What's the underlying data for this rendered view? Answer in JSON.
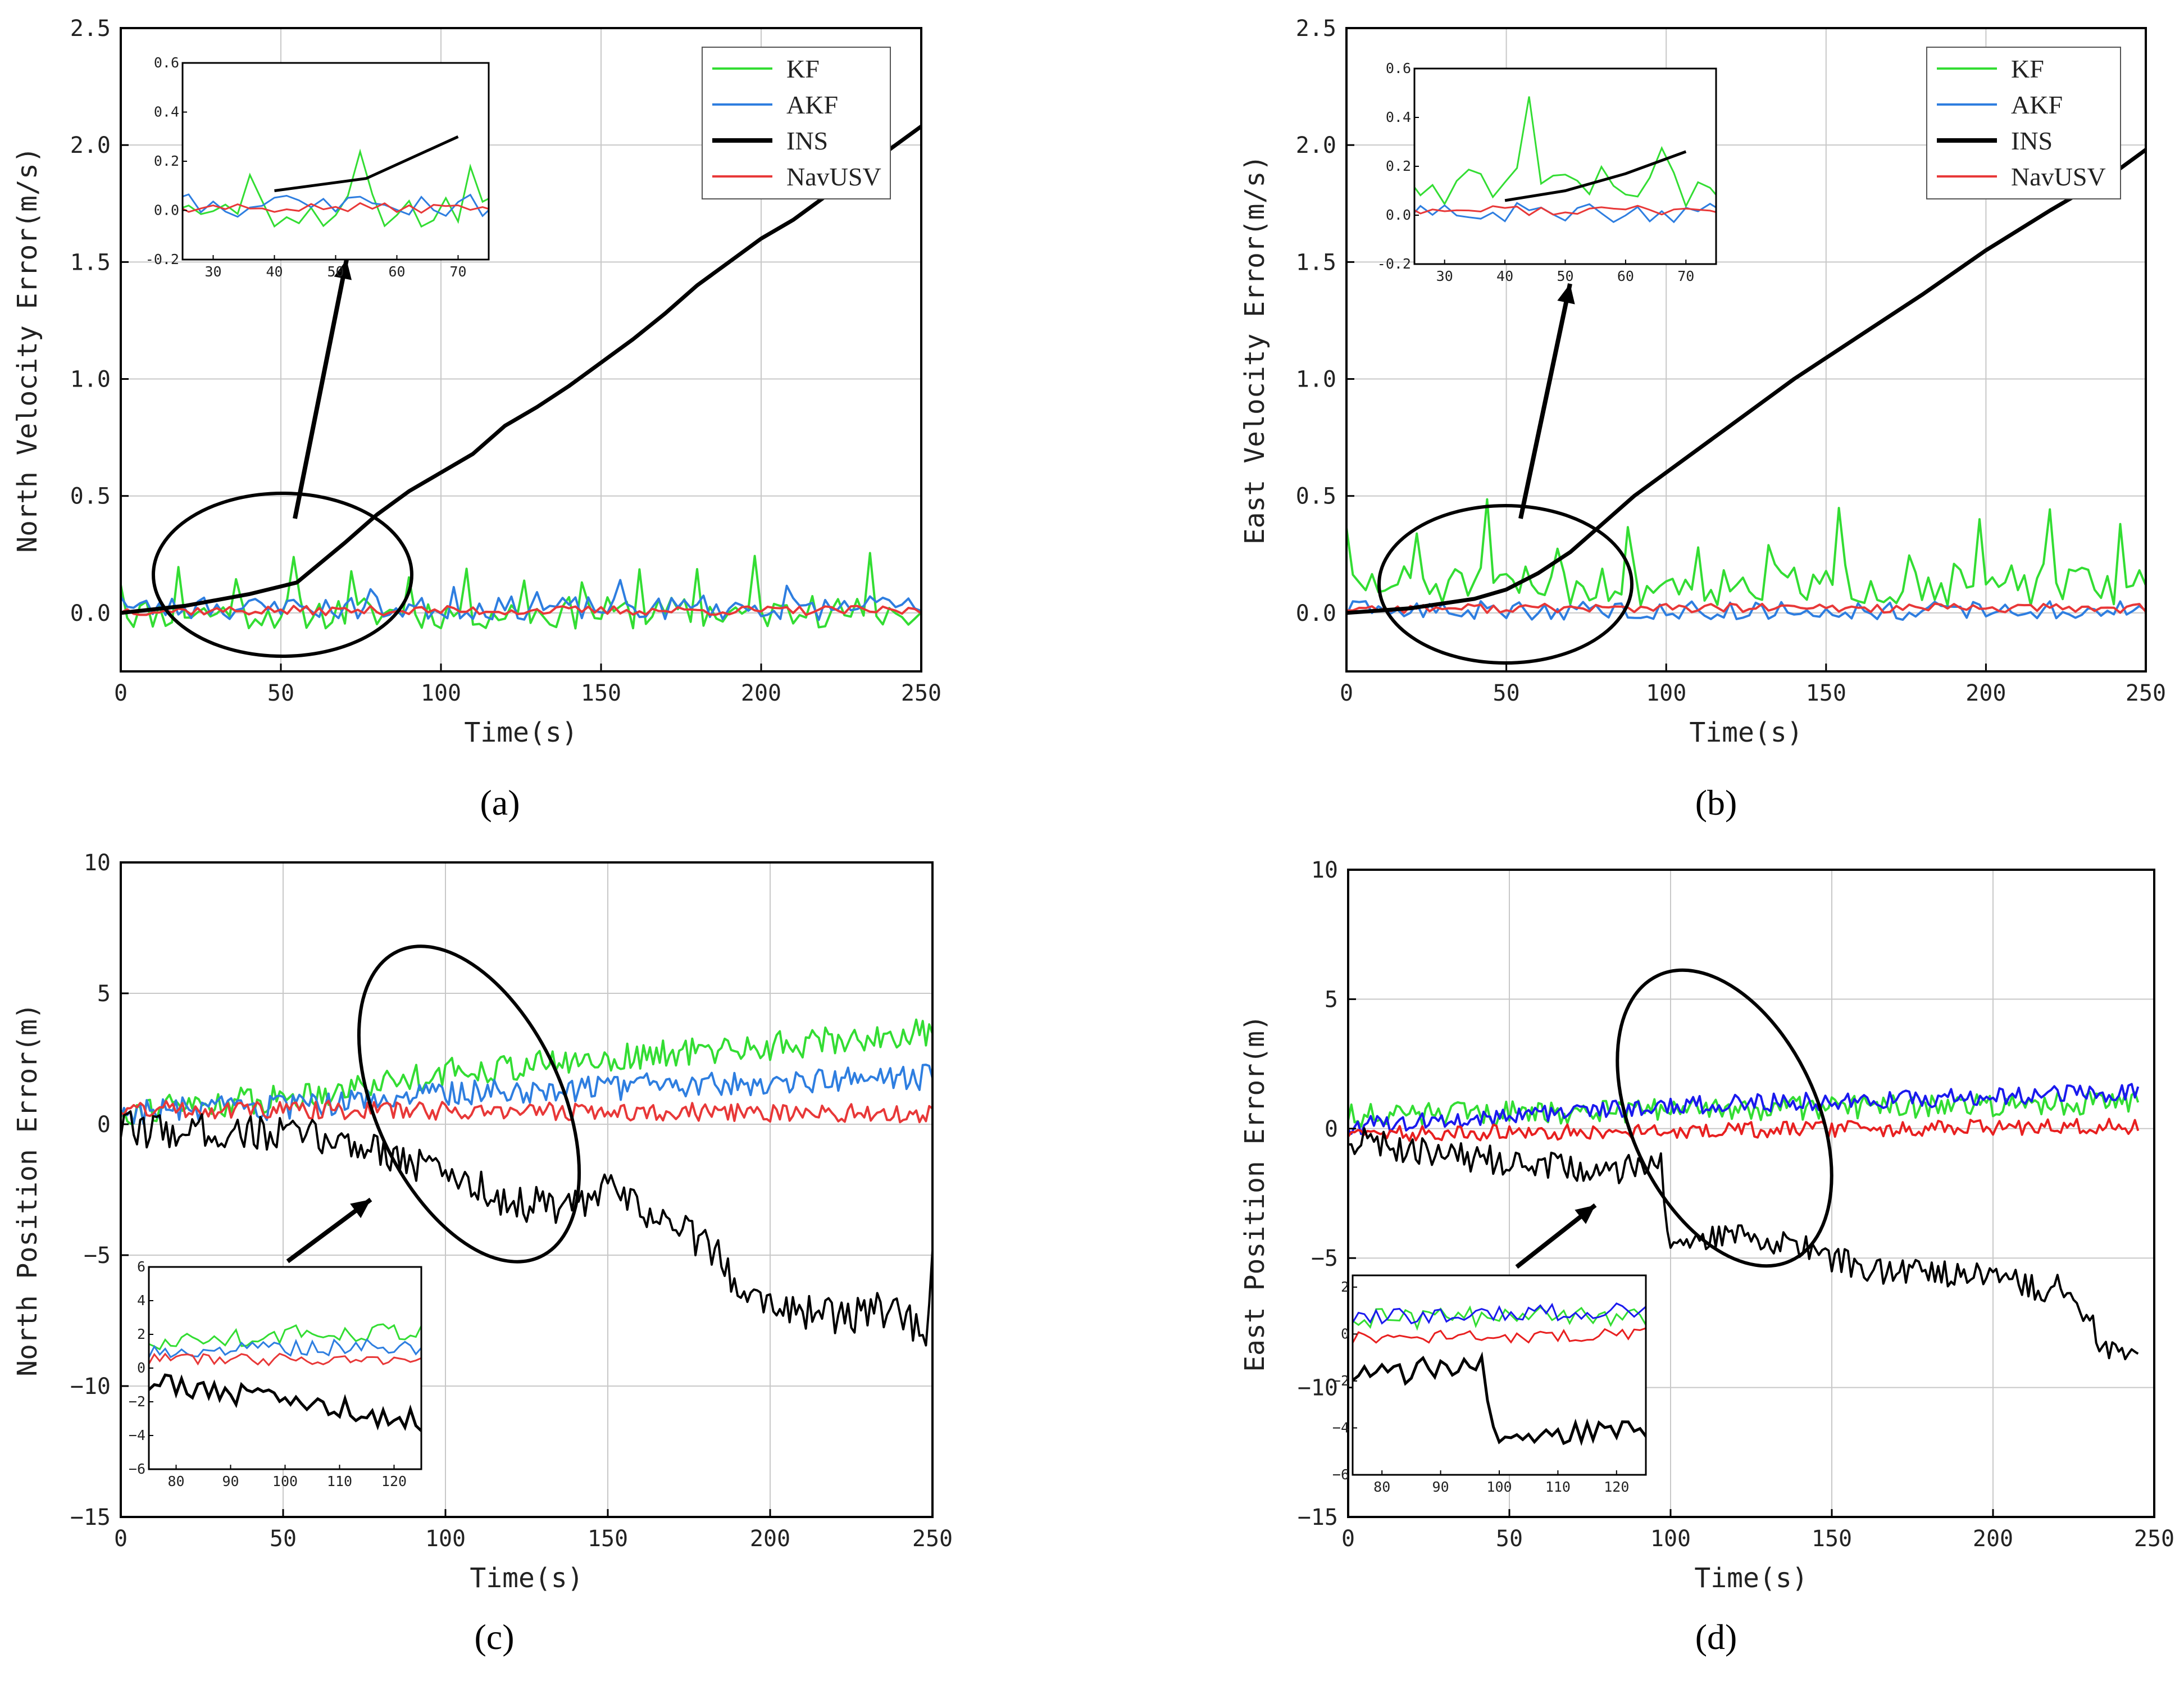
{
  "chart_data": [
    {
      "id": "a",
      "type": "line",
      "caption": "(a)",
      "xlabel": "Time(s)",
      "ylabel": "North Velocity Error(m/s)",
      "xlim": [
        0,
        250
      ],
      "ylim": [
        -0.25,
        2.5
      ],
      "xticks": [
        0,
        50,
        100,
        150,
        200,
        250
      ],
      "yticks": [
        0.0,
        0.5,
        1.0,
        1.5,
        2.0,
        2.5
      ],
      "ytick_labels": [
        "0.0",
        "0.5",
        "1.0",
        "1.5",
        "2.0",
        "2.5"
      ],
      "grid": true,
      "legend": {
        "placement": "top-right",
        "entries": [
          "KF",
          "AKF",
          "INS",
          "NavUSV"
        ]
      },
      "series": [
        {
          "name": "KF",
          "color": "#33dd33",
          "x_range": [
            0,
            250
          ],
          "step": 2,
          "base": 0.0,
          "noise": 0.07,
          "spike_every": 9,
          "spike": 0.22,
          "seed": 11
        },
        {
          "name": "AKF",
          "color": "#2e7ee0",
          "x_range": [
            0,
            250
          ],
          "step": 2,
          "base": 0.02,
          "noise": 0.05,
          "spike_every": 13,
          "spike": 0.1,
          "seed": 23
        },
        {
          "name": "INS",
          "color": "#000000",
          "width": 2.2,
          "x": [
            0,
            20,
            40,
            55,
            70,
            80,
            90,
            100,
            110,
            120,
            130,
            140,
            150,
            160,
            170,
            180,
            190,
            200,
            210,
            220,
            230,
            240,
            250
          ],
          "y": [
            0.0,
            0.03,
            0.08,
            0.13,
            0.3,
            0.42,
            0.52,
            0.6,
            0.68,
            0.8,
            0.88,
            0.97,
            1.07,
            1.17,
            1.28,
            1.4,
            1.5,
            1.6,
            1.68,
            1.78,
            1.87,
            1.98,
            2.08
          ]
        },
        {
          "name": "NavUSV",
          "color": "#e83838",
          "x_range": [
            0,
            250
          ],
          "step": 2,
          "base": 0.01,
          "noise": 0.02,
          "seed": 37
        }
      ],
      "inset": {
        "xlim": [
          25,
          75
        ],
        "ylim": [
          -0.2,
          0.6
        ],
        "xticks": [
          30,
          40,
          50,
          60,
          70
        ],
        "yticks": [
          -0.2,
          0.0,
          0.2,
          0.4,
          0.6
        ],
        "ytick_labels": [
          "-0.2",
          "0.0",
          "0.2",
          "0.4",
          "0.6"
        ]
      }
    },
    {
      "id": "b",
      "type": "line",
      "caption": "(b)",
      "xlabel": "Time(s)",
      "ylabel": "East Velocity Error(m/s)",
      "xlim": [
        0,
        250
      ],
      "ylim": [
        -0.25,
        2.5
      ],
      "xticks": [
        0,
        50,
        100,
        150,
        200,
        250
      ],
      "yticks": [
        0.0,
        0.5,
        1.0,
        1.5,
        2.0,
        2.5
      ],
      "ytick_labels": [
        "0.0",
        "0.5",
        "1.0",
        "1.5",
        "2.0",
        "2.5"
      ],
      "grid": true,
      "legend": {
        "placement": "top-right",
        "entries": [
          "KF",
          "AKF",
          "INS",
          "NavUSV"
        ]
      },
      "series": [
        {
          "name": "KF",
          "color": "#33dd33",
          "x_range": [
            0,
            250
          ],
          "step": 2,
          "base": 0.12,
          "noise": 0.09,
          "spike_every": 11,
          "spike": 0.3,
          "seed": 51
        },
        {
          "name": "AKF",
          "color": "#2e7ee0",
          "x_range": [
            0,
            250
          ],
          "step": 2,
          "base": 0.01,
          "noise": 0.04,
          "seed": 63
        },
        {
          "name": "INS",
          "color": "#000000",
          "width": 2.2,
          "x": [
            0,
            20,
            40,
            50,
            60,
            70,
            80,
            90,
            100,
            120,
            140,
            160,
            180,
            200,
            220,
            240,
            250
          ],
          "y": [
            0.0,
            0.02,
            0.06,
            0.1,
            0.17,
            0.26,
            0.38,
            0.5,
            0.6,
            0.8,
            1.0,
            1.18,
            1.36,
            1.55,
            1.72,
            1.88,
            1.98
          ]
        },
        {
          "name": "NavUSV",
          "color": "#e83838",
          "x_range": [
            0,
            250
          ],
          "step": 2,
          "base": 0.02,
          "noise": 0.02,
          "seed": 77
        }
      ],
      "inset": {
        "xlim": [
          25,
          75
        ],
        "ylim": [
          -0.2,
          0.6
        ],
        "xticks": [
          30,
          40,
          50,
          60,
          70
        ],
        "yticks": [
          -0.2,
          0.0,
          0.2,
          0.4,
          0.6
        ],
        "ytick_labels": [
          "-0.2",
          "0.0",
          "0.2",
          "0.4",
          "0.6"
        ]
      }
    },
    {
      "id": "c",
      "type": "line",
      "caption": "(c)",
      "xlabel": "Time(s)",
      "ylabel": "North Position Error(m)",
      "xlim": [
        0,
        250
      ],
      "ylim": [
        -15,
        10
      ],
      "xticks": [
        0,
        50,
        100,
        150,
        200,
        250
      ],
      "yticks": [
        -15,
        -10,
        -5,
        0,
        5,
        10
      ],
      "ytick_labels": [
        "−15",
        "−10",
        "−5",
        "0",
        "5",
        "10"
      ],
      "grid": true,
      "legend": null,
      "series": [
        {
          "name": "KF",
          "color": "#33dd33",
          "x": [
            0,
            50,
            100,
            150,
            200,
            250
          ],
          "y": [
            0.5,
            1.0,
            2.0,
            2.5,
            3.0,
            3.5
          ],
          "step": 1,
          "noise": 0.55,
          "seed": 91
        },
        {
          "name": "AKF",
          "color": "#2e7ee0",
          "x": [
            0,
            50,
            100,
            150,
            200,
            250
          ],
          "y": [
            0.5,
            0.6,
            1.2,
            1.4,
            1.6,
            1.8
          ],
          "step": 1,
          "noise": 0.5,
          "seed": 103
        },
        {
          "name": "INS",
          "color": "#000000",
          "x": [
            0,
            40,
            60,
            80,
            90,
            100,
            120,
            140,
            150,
            160,
            180,
            190,
            200,
            220,
            240,
            248,
            250
          ],
          "y": [
            -0.2,
            -0.3,
            -0.5,
            -0.9,
            -1.5,
            -1.8,
            -3.0,
            -3.2,
            -2.5,
            -3.2,
            -4.5,
            -6.0,
            -6.8,
            -7.4,
            -7.0,
            -8.5,
            -5.0
          ],
          "step": 1,
          "noise": 0.7,
          "seed": 117
        },
        {
          "name": "NavUSV",
          "color": "#e83838",
          "x": [
            0,
            250
          ],
          "y": [
            0.6,
            0.4
          ],
          "step": 1,
          "noise": 0.35,
          "seed": 131
        }
      ],
      "inset": {
        "xlim": [
          75,
          125
        ],
        "ylim": [
          -6,
          6
        ],
        "xticks": [
          80,
          90,
          100,
          110,
          120
        ],
        "yticks": [
          -6,
          -4,
          -2,
          0,
          2,
          4,
          6
        ],
        "ytick_labels": [
          "−6",
          "−4",
          "−2",
          "0",
          "2",
          "4",
          "6"
        ]
      }
    },
    {
      "id": "d",
      "type": "line",
      "caption": "(d)",
      "xlabel": "Time(s)",
      "ylabel": "East Position Error(m)",
      "xlim": [
        0,
        250
      ],
      "ylim": [
        -15,
        10
      ],
      "xticks": [
        0,
        50,
        100,
        150,
        200,
        250
      ],
      "yticks": [
        -15,
        -10,
        -5,
        0,
        5,
        10
      ],
      "ytick_labels": [
        "−15",
        "−10",
        "−5",
        "0",
        "5",
        "10"
      ],
      "grid": true,
      "legend": null,
      "series": [
        {
          "name": "KF",
          "color": "#33dd33",
          "x": [
            0,
            245
          ],
          "y": [
            0.5,
            1.0
          ],
          "step": 1,
          "noise": 0.45,
          "seed": 151
        },
        {
          "name": "AKF",
          "color": "#1a1aee",
          "x": [
            0,
            100,
            245
          ],
          "y": [
            0.1,
            0.9,
            1.4
          ],
          "step": 1,
          "noise": 0.35,
          "seed": 163
        },
        {
          "name": "INS",
          "color": "#000000",
          "x": [
            0,
            30,
            60,
            80,
            97,
            99,
            120,
            140,
            160,
            200,
            220,
            230,
            235,
            245
          ],
          "y": [
            -0.4,
            -1.0,
            -1.4,
            -1.6,
            -1.5,
            -4.2,
            -4.1,
            -4.6,
            -5.4,
            -5.8,
            -6.2,
            -7.5,
            -8.5,
            -8.7
          ],
          "step": 1,
          "noise": 0.55,
          "seed": 177
        },
        {
          "name": "NavUSV",
          "color": "#e82020",
          "x": [
            0,
            245
          ],
          "y": [
            -0.2,
            0.1
          ],
          "step": 1,
          "noise": 0.3,
          "seed": 191
        }
      ],
      "inset": {
        "xlim": [
          75,
          125
        ],
        "ylim": [
          -6,
          2.5
        ],
        "xticks": [
          80,
          90,
          100,
          110,
          120
        ],
        "yticks": [
          -6,
          -4,
          -2,
          0,
          2
        ],
        "ytick_labels": [
          "−6",
          "−4",
          "−2",
          "0",
          "2"
        ]
      }
    }
  ]
}
